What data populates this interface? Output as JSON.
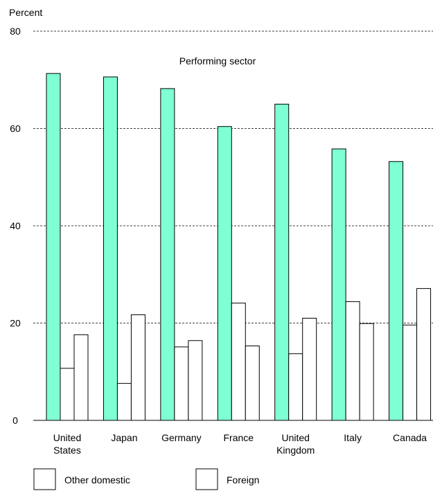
{
  "chart_data": {
    "type": "bar",
    "ylabel": "Percent",
    "annotation": "Performing sector",
    "ylim": [
      0,
      80
    ],
    "yticks": [
      0,
      20,
      40,
      60,
      80
    ],
    "grid": true,
    "legend_position": "bottom",
    "categories": [
      [
        "United",
        "States"
      ],
      [
        "Japan"
      ],
      [
        "Germany"
      ],
      [
        "France"
      ],
      [
        "United",
        "Kingdom"
      ],
      [
        "Italy"
      ],
      [
        "Canada"
      ]
    ],
    "series": [
      {
        "values": [
          71.3,
          70.6,
          68.2,
          60.4,
          65.0,
          55.8,
          53.2
        ],
        "color": "#7fffd4"
      },
      {
        "name": "Other domestic",
        "values": [
          10.7,
          7.6,
          15.1,
          24.1,
          13.7,
          24.4,
          19.6
        ],
        "color": "#ffffff"
      },
      {
        "name": "Foreign",
        "values": [
          17.6,
          21.7,
          16.4,
          15.3,
          21.0,
          19.9,
          27.1
        ],
        "color": "#ffffff"
      }
    ]
  }
}
